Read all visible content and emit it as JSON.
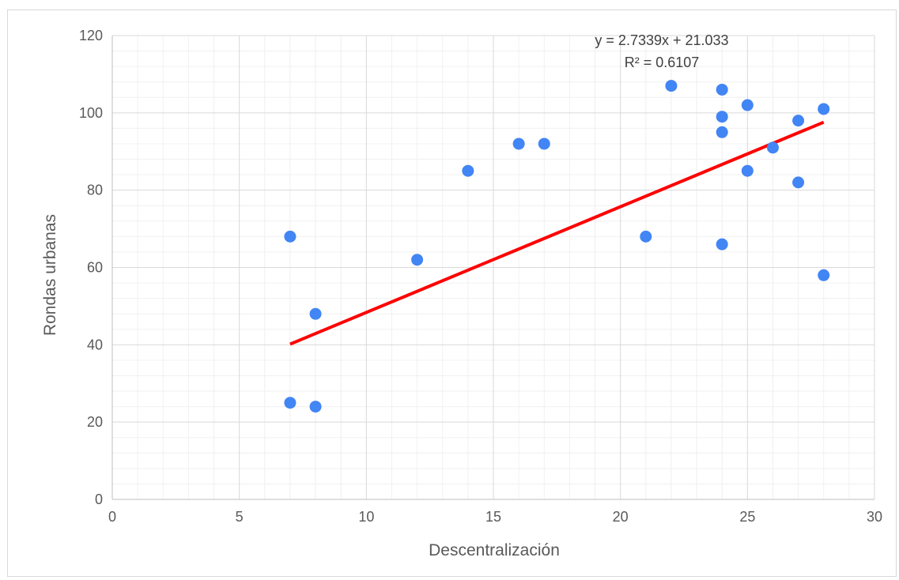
{
  "chart_data": {
    "type": "scatter",
    "xlabel": "Descentralización",
    "ylabel": "Rondas urbanas",
    "xlim": [
      0,
      30
    ],
    "ylim": [
      0,
      120
    ],
    "xticks": [
      0,
      5,
      10,
      15,
      20,
      25,
      30
    ],
    "yticks": [
      0,
      20,
      40,
      60,
      80,
      100,
      120
    ],
    "major_grid": true,
    "minor_grid": true,
    "legend": "none",
    "point_color": "#4285f4",
    "trendline_color": "#ff0000",
    "series": [
      {
        "points": [
          {
            "x": 7,
            "y": 68
          },
          {
            "x": 7,
            "y": 25
          },
          {
            "x": 8,
            "y": 48
          },
          {
            "x": 8,
            "y": 24
          },
          {
            "x": 12,
            "y": 62
          },
          {
            "x": 14,
            "y": 85
          },
          {
            "x": 16,
            "y": 92
          },
          {
            "x": 17,
            "y": 92
          },
          {
            "x": 21,
            "y": 68
          },
          {
            "x": 22,
            "y": 107
          },
          {
            "x": 24,
            "y": 106
          },
          {
            "x": 24,
            "y": 99
          },
          {
            "x": 24,
            "y": 95
          },
          {
            "x": 24,
            "y": 66
          },
          {
            "x": 25,
            "y": 102
          },
          {
            "x": 25,
            "y": 85
          },
          {
            "x": 26,
            "y": 91
          },
          {
            "x": 27,
            "y": 98
          },
          {
            "x": 27,
            "y": 82
          },
          {
            "x": 28,
            "y": 101
          },
          {
            "x": 28,
            "y": 58
          }
        ]
      }
    ],
    "trendline": {
      "type": "linear",
      "slope": 2.7339,
      "intercept": 21.033,
      "x_range": [
        7,
        28
      ],
      "equation_label": "y = 2.7339x + 21.033",
      "r2_label": "R² = 0.6107"
    }
  }
}
